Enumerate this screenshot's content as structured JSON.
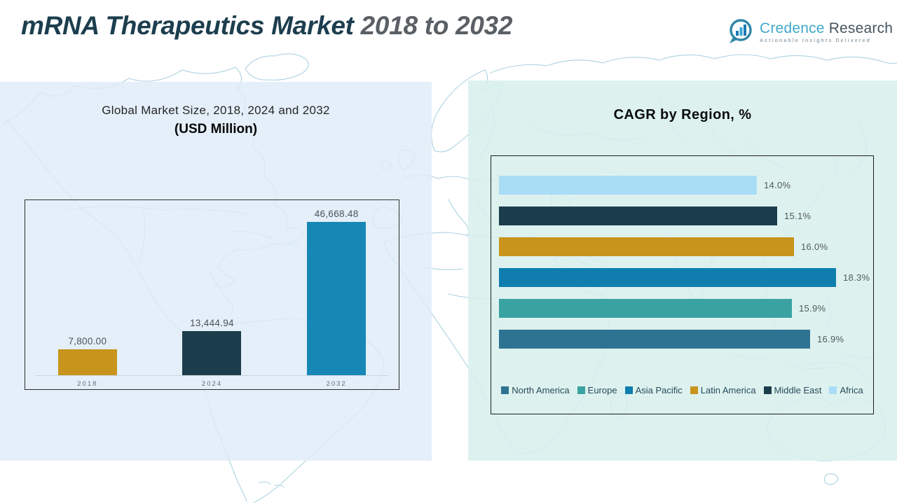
{
  "header": {
    "title_main": "mRNA Therapeutics Market",
    "title_range": " 2018 to 2032",
    "logo": {
      "brand_first": "Credence",
      "brand_second": " Research",
      "tagline": "Actionable Insights Delivered"
    }
  },
  "colors": {
    "title_main": "#1C3E4E",
    "title_range": "#5A6065",
    "left_panel_bg": "#E3EEF8",
    "right_panel_bg": "#DDF0EC",
    "map_line": "#A9D0E0",
    "gold": "#C8941C",
    "navy": "#1C3D4C",
    "blue_2032": "#1787B5",
    "asia_pacific_blue": "#0F7EAF",
    "europe_teal": "#3AA2A1",
    "north_america_steel": "#2E7392",
    "africa_light_blue": "#A9DCF5"
  },
  "chart_data": [
    {
      "type": "bar",
      "title_line1": "Global Market Size, 2018, 2024 and 2032",
      "title_line2": "(USD Million)",
      "categories": [
        "2018",
        "2024",
        "2032"
      ],
      "values": [
        7800.0,
        13444.94,
        46668.48
      ],
      "value_labels": [
        "7,800.00",
        "13,444.94",
        "46,668.48"
      ],
      "bar_colors": [
        "#C8941C",
        "#1C3D4C",
        "#1787B5"
      ],
      "ylim": [
        0,
        47000
      ],
      "grid": false
    },
    {
      "type": "bar-horizontal",
      "title": "CAGR by Region, %",
      "rows": [
        {
          "region": "Africa",
          "value": 14.0,
          "label": "14.0%",
          "color": "#A9DCF5"
        },
        {
          "region": "Middle East",
          "value": 15.1,
          "label": "15.1%",
          "color": "#1C3D4C"
        },
        {
          "region": "Latin America",
          "value": 16.0,
          "label": "16.0%",
          "color": "#C8941C"
        },
        {
          "region": "Asia Pacific",
          "value": 18.3,
          "label": "18.3%",
          "color": "#0F7EAF"
        },
        {
          "region": "Europe",
          "value": 15.9,
          "label": "15.9%",
          "color": "#3AA2A1"
        },
        {
          "region": "North America",
          "value": 16.9,
          "label": "16.9%",
          "color": "#2E7392"
        }
      ],
      "legend": [
        {
          "label": "North America",
          "color": "#2E7392"
        },
        {
          "label": "Europe",
          "color": "#3AA2A1"
        },
        {
          "label": "Asia Pacific",
          "color": "#0F7EAF"
        },
        {
          "label": "Latin America",
          "color": "#C8941C"
        },
        {
          "label": "Middle East",
          "color": "#1C3D4C"
        },
        {
          "label": "Africa",
          "color": "#A9DCF5"
        }
      ],
      "xlim": [
        0,
        20
      ],
      "legend_position": "bottom"
    }
  ]
}
